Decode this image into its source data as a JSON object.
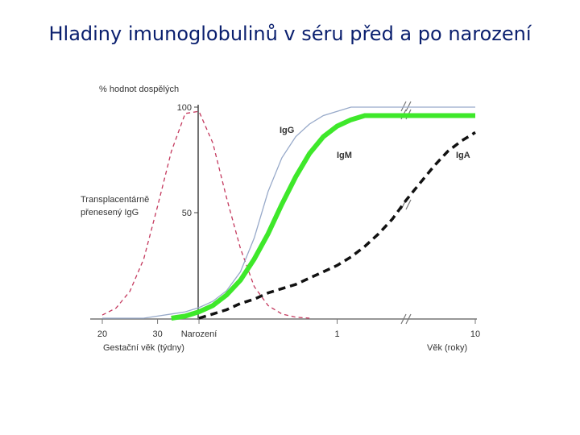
{
  "chart_data": {
    "type": "line",
    "title": "Hladiny imunoglobulinů v séru před a po narození",
    "y_label": "% hodnot dospělých",
    "x_label_left": "Gestační věk (týdny)",
    "x_label_right": "Věk (roky)",
    "categories": [
      "20",
      null,
      null,
      null,
      "30",
      null,
      null,
      "Narození",
      null,
      null,
      null,
      null,
      null,
      null,
      null,
      null,
      null,
      "1",
      null,
      null,
      null,
      null,
      null,
      null,
      null,
      null,
      null,
      "10"
    ],
    "ylim": [
      0,
      100
    ],
    "yticks": [
      50,
      100
    ],
    "series": [
      {
        "name": "Transplacentárně přenesený IgG",
        "color": "#c4395e",
        "dashed": true,
        "values": [
          1.5,
          4.8,
          12.8,
          28,
          53,
          79,
          97,
          98,
          83,
          57,
          33,
          15,
          6,
          2,
          0.5,
          0,
          null,
          null,
          null,
          null,
          null,
          null,
          null,
          null,
          null,
          null,
          null,
          null
        ]
      },
      {
        "name": "IgG",
        "color": "#97a9c9",
        "dashed": false,
        "values": [
          0,
          0,
          0,
          0,
          1,
          2,
          3,
          5,
          8,
          13,
          22,
          38,
          60,
          76,
          86,
          92,
          96,
          98,
          100,
          100,
          100,
          100,
          100,
          100,
          100,
          100,
          100,
          100
        ]
      },
      {
        "name": "IgM",
        "color": "#3ee82a",
        "dashed": false,
        "values": [
          null,
          null,
          null,
          null,
          null,
          0,
          1,
          3,
          6,
          11,
          18,
          28,
          40,
          54,
          67,
          78,
          86,
          91,
          94,
          96,
          96,
          96,
          96,
          96,
          96,
          96,
          96,
          96
        ]
      },
      {
        "name": "IgA",
        "color": "#111111",
        "dashed": true,
        "values": [
          null,
          null,
          null,
          null,
          null,
          null,
          null,
          0,
          2,
          4,
          7,
          9,
          12,
          14,
          16,
          19,
          22,
          25,
          29,
          34,
          40,
          47,
          56,
          64,
          72,
          79,
          84,
          88
        ]
      }
    ]
  }
}
